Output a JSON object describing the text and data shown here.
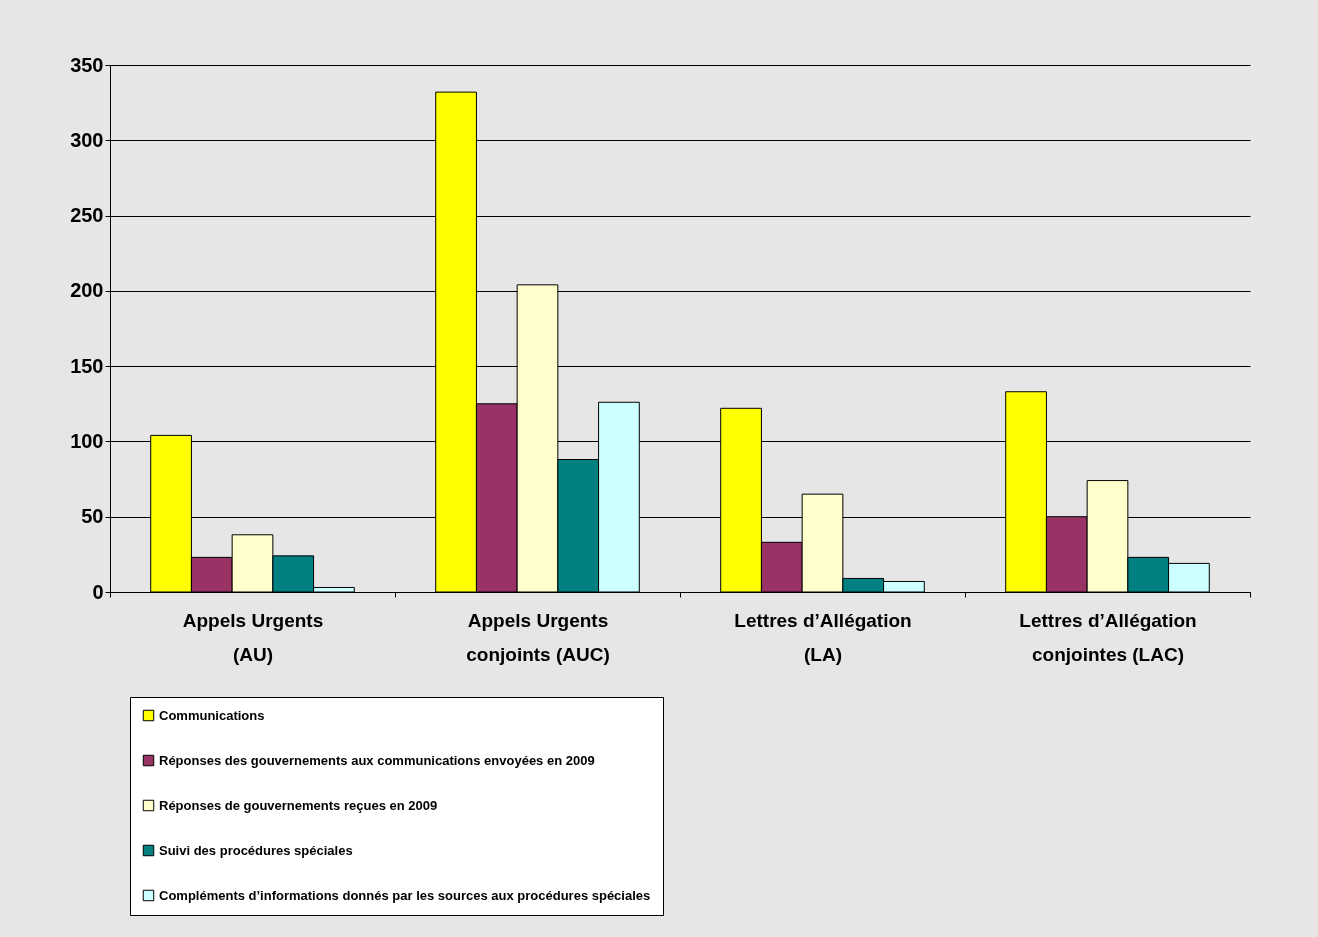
{
  "chart_data": {
    "type": "bar",
    "categories": [
      "Appels Urgents (AU)",
      "Appels Urgents conjoints (AUC)",
      "Lettres d’Allégation (LA)",
      "Lettres d’Allégation conjointes (LAC)"
    ],
    "series": [
      {
        "name": "Communications",
        "color": "#ffff00",
        "values": [
          104,
          332,
          122,
          133
        ]
      },
      {
        "name": "Réponses des gouvernements aux communications envoyées en 2009",
        "color": "#993366",
        "values": [
          23,
          125,
          33,
          50
        ]
      },
      {
        "name": "Réponses de gouvernements reçues en 2009",
        "color": "#ffffcc",
        "values": [
          38,
          204,
          65,
          74
        ]
      },
      {
        "name": "Suivi des procédures spéciales",
        "color": "#008080",
        "values": [
          24,
          88,
          9,
          23
        ]
      },
      {
        "name": "Compléments d’informations donnés par les sources aux procédures spéciales",
        "color": "#ccffff",
        "values": [
          3,
          126,
          7,
          19
        ]
      }
    ],
    "ylim": [
      0,
      350
    ],
    "yticks": [
      0,
      50,
      100,
      150,
      200,
      250,
      300,
      350
    ],
    "grid": "y",
    "legend": "bottom"
  }
}
